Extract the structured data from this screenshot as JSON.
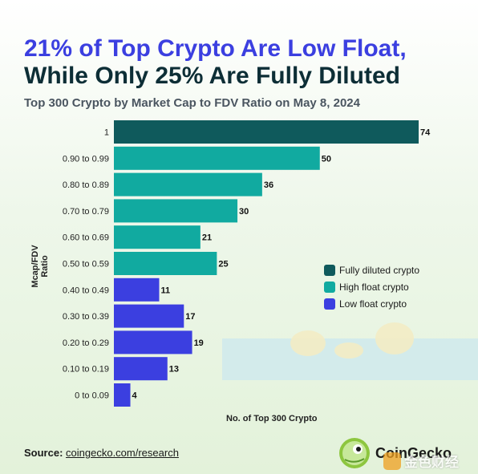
{
  "title_line1": "21% of Top Crypto Are Low Float,",
  "title_line2": "While Only 25% Are Fully Diluted",
  "subtitle": "Top 300 Crypto by Market Cap to FDV Ratio on May 8, 2024",
  "chart_data": {
    "type": "bar",
    "orientation": "horizontal",
    "categories": [
      "1",
      "0.90 to 0.99",
      "0.80 to 0.89",
      "0.70 to 0.79",
      "0.60 to 0.69",
      "0.50 to 0.59",
      "0.40 to 0.49",
      "0.30 to 0.39",
      "0.20 to 0.29",
      "0.10 to 0.19",
      "0 to 0.09"
    ],
    "values": [
      74,
      50,
      36,
      30,
      21,
      25,
      11,
      17,
      19,
      13,
      4
    ],
    "groups": [
      "Fully diluted crypto",
      "High float crypto",
      "High float crypto",
      "High float crypto",
      "High float crypto",
      "High float crypto",
      "Low float crypto",
      "Low float crypto",
      "Low float crypto",
      "Low float crypto",
      "Low float crypto"
    ],
    "xlabel": "No. of Top 300 Crypto",
    "ylabel": "Mcap/FDV Ratio",
    "xlim": [
      0,
      74
    ],
    "grid": false,
    "legend_position": "right",
    "legend": [
      {
        "label": "Fully diluted crypto",
        "color": "#0f5a5c"
      },
      {
        "label": "High float crypto",
        "color": "#11aaa0"
      },
      {
        "label": "Low float crypto",
        "color": "#3b3fe0"
      }
    ]
  },
  "source_label": "Source:",
  "source_link": "coingecko.com/research",
  "brand_name": "CoinGecko",
  "watermark": "金色财经",
  "colors": {
    "title_accent": "#3b3fe0",
    "title_dark": "#0d2e36",
    "background": "#e3f2da"
  }
}
